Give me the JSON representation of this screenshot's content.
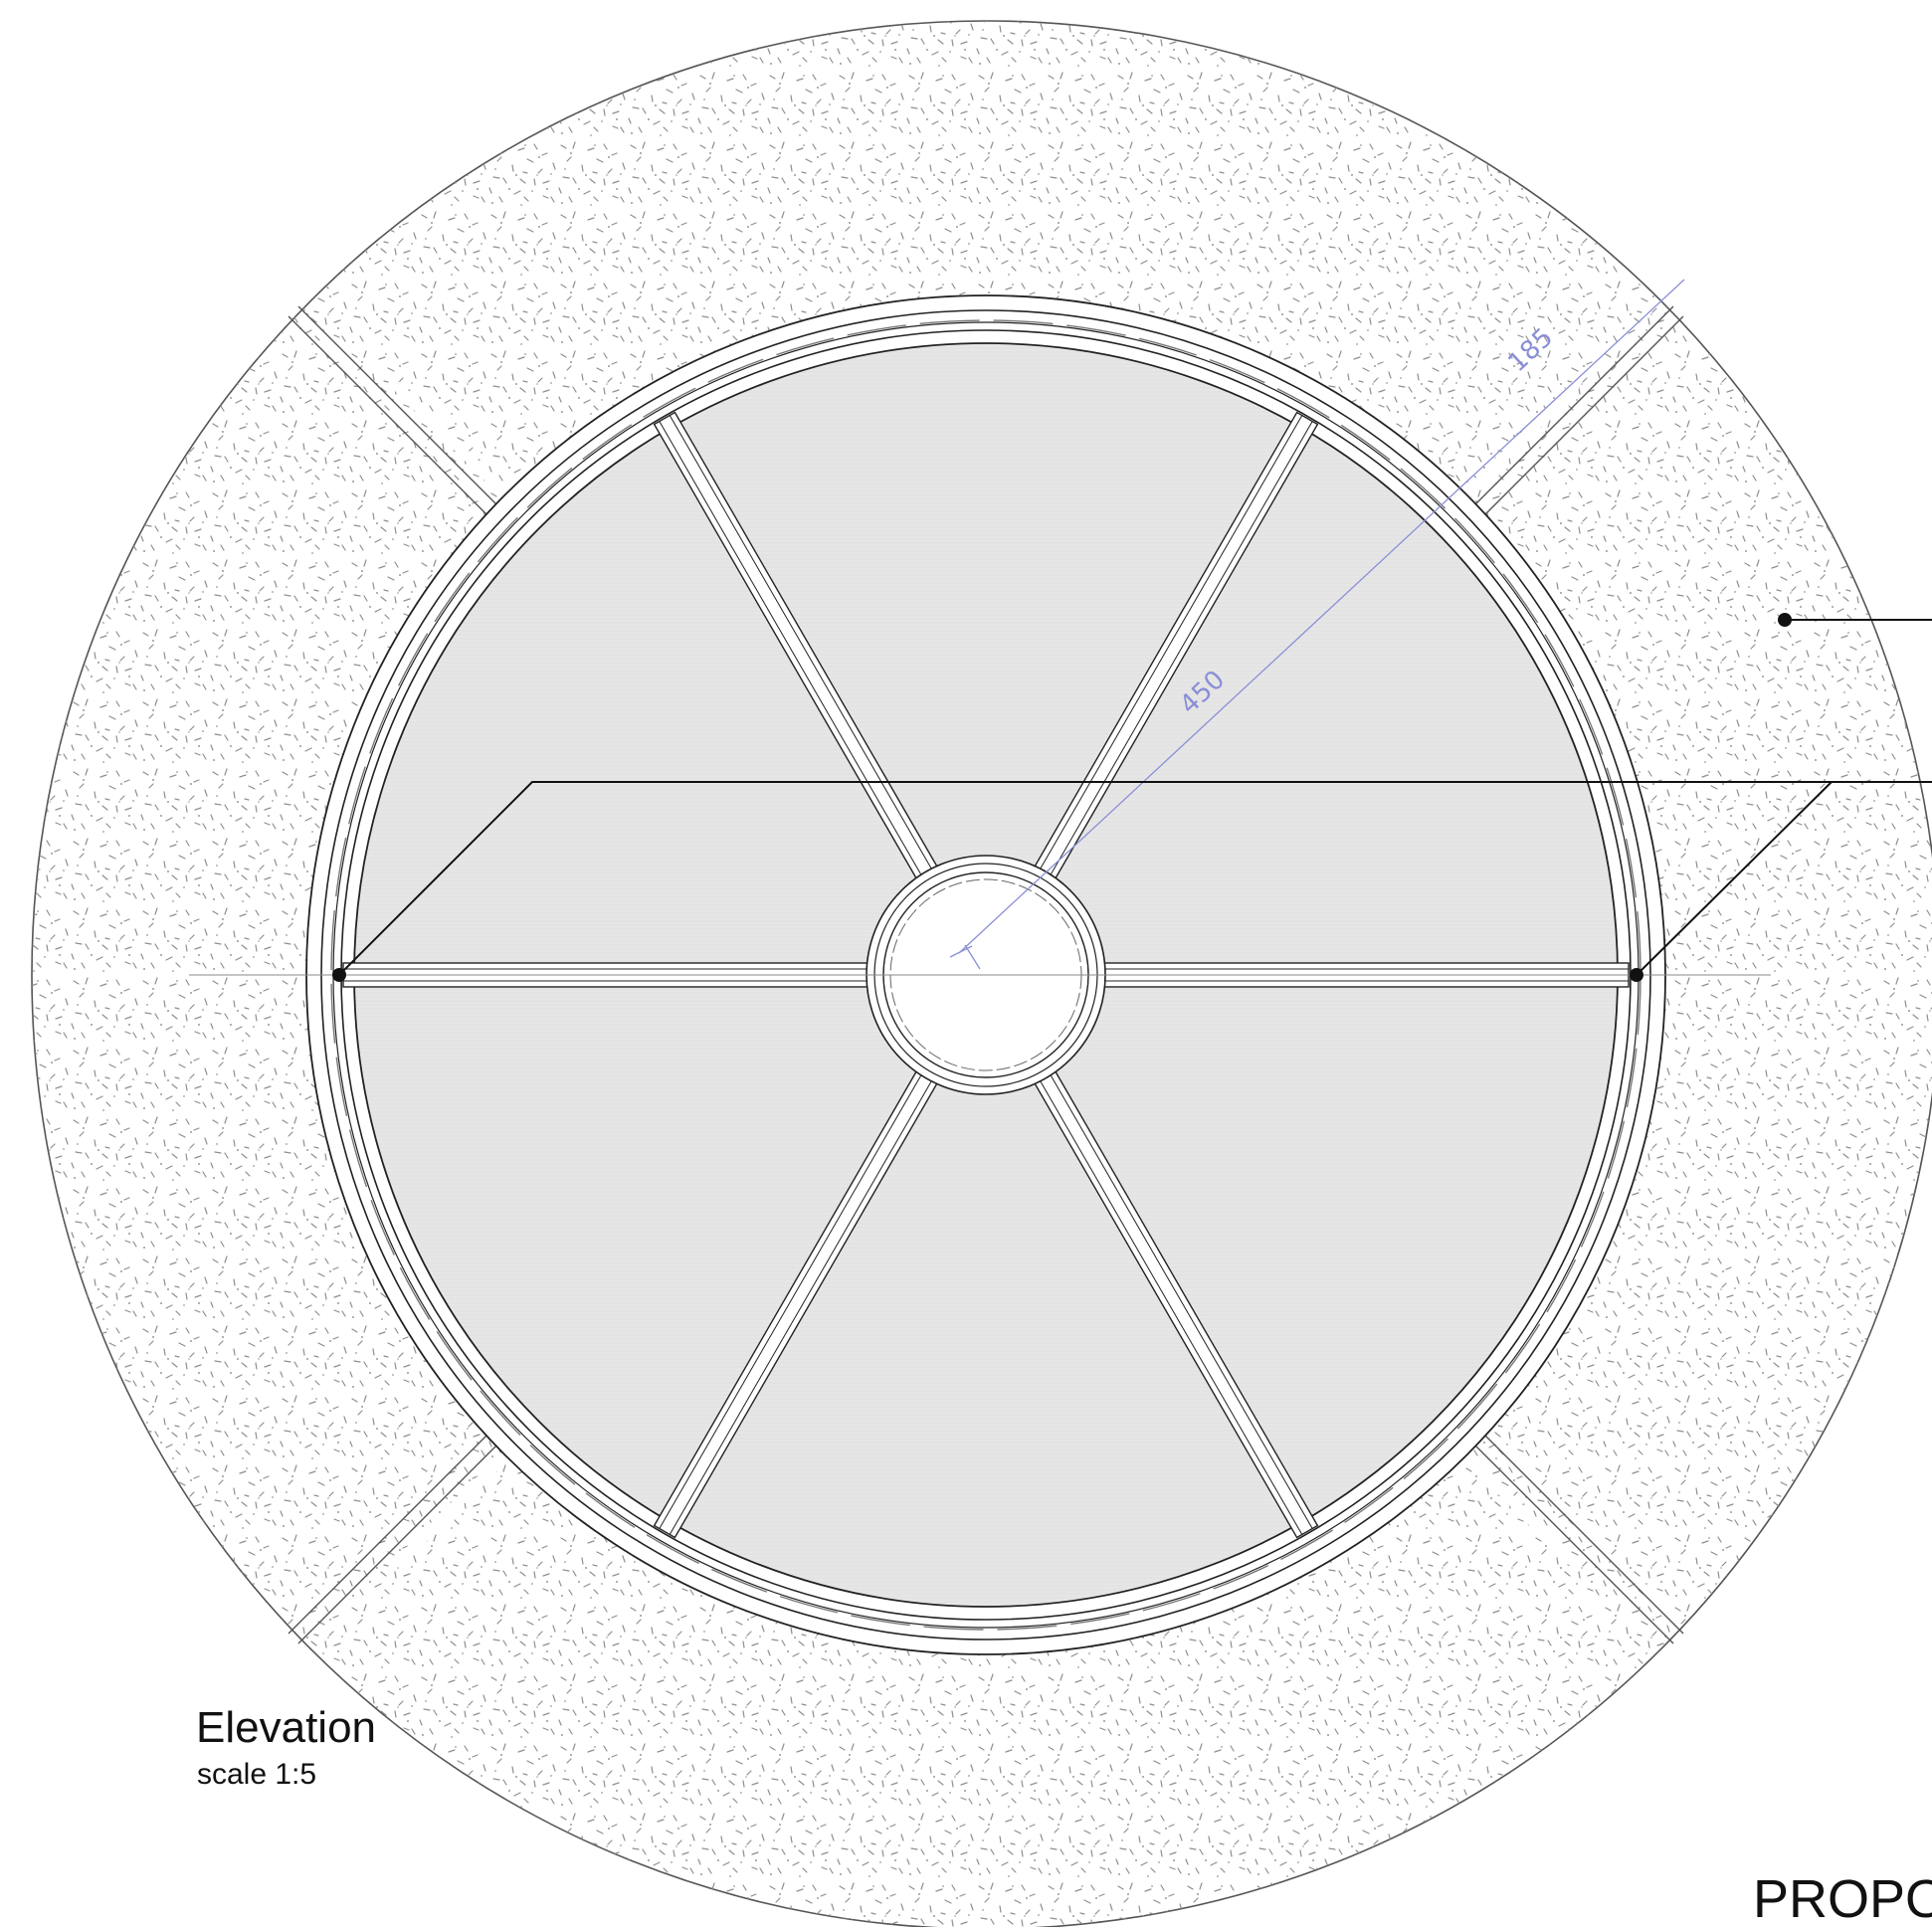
{
  "drawing": {
    "title": "Elevation",
    "scale": "scale 1:5",
    "cut_off_text": "PROPO"
  },
  "dimensions": {
    "inner_radius": "450",
    "frame_band": "185"
  },
  "colors": {
    "line": "#222222",
    "stone_speckle": "#8f8f8f",
    "glass": "#e6e6e6",
    "dimension": "#8a8fd6"
  }
}
